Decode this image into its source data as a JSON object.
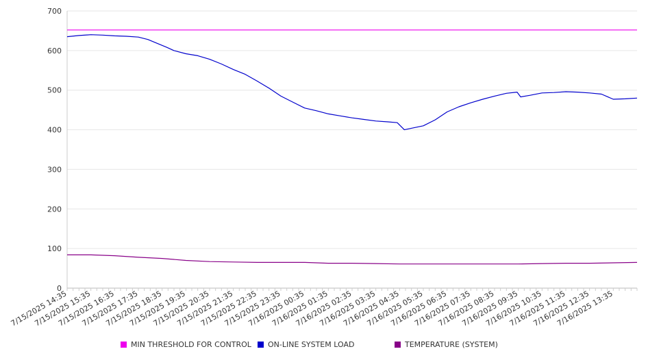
{
  "chart_data": {
    "type": "line",
    "ylim": [
      0,
      700
    ],
    "yticks": [
      0,
      100,
      200,
      300,
      400,
      500,
      600,
      700
    ],
    "x_labels": [
      "7/15/2025 14:35",
      "7/15/2025 15:35",
      "7/15/2025 16:35",
      "7/15/2025 17:35",
      "7/15/2025 18:35",
      "7/15/2025 19:35",
      "7/15/2025 20:35",
      "7/15/2025 21:35",
      "7/15/2025 22:35",
      "7/15/2025 23:35",
      "7/16/2025 00:35",
      "7/16/2025 01:35",
      "7/16/2025 02:35",
      "7/16/2025 03:35",
      "7/16/2025 04:35",
      "7/16/2025 05:35",
      "7/16/2025 06:35",
      "7/16/2025 07:35",
      "7/16/2025 08:35",
      "7/16/2025 09:35",
      "7/16/2025 10:35",
      "7/16/2025 11:35",
      "7/16/2025 12:35",
      "7/16/2025 13:35"
    ],
    "x_range_hours": [
      0,
      24
    ],
    "grid": true,
    "legend_position": "bottom",
    "series": [
      {
        "name": "MIN THRESHOLD FOR CONTROL",
        "color": "#ee00ee",
        "points": [
          [
            0,
            652
          ],
          [
            24,
            652
          ]
        ]
      },
      {
        "name": "ON-LINE SYSTEM LOAD",
        "color": "#0000cc",
        "points": [
          [
            0,
            635
          ],
          [
            0.5,
            638
          ],
          [
            1,
            640
          ],
          [
            1.5,
            639
          ],
          [
            2,
            637
          ],
          [
            2.5,
            636
          ],
          [
            3,
            634
          ],
          [
            3.4,
            628
          ],
          [
            3.8,
            618
          ],
          [
            4.2,
            608
          ],
          [
            4.5,
            600
          ],
          [
            5,
            592
          ],
          [
            5.5,
            587
          ],
          [
            6,
            578
          ],
          [
            6.5,
            566
          ],
          [
            7,
            552
          ],
          [
            7.5,
            540
          ],
          [
            8,
            523
          ],
          [
            8.5,
            505
          ],
          [
            9,
            485
          ],
          [
            9.5,
            470
          ],
          [
            10,
            455
          ],
          [
            10.5,
            448
          ],
          [
            11,
            440
          ],
          [
            11.5,
            435
          ],
          [
            12,
            430
          ],
          [
            12.5,
            426
          ],
          [
            13,
            422
          ],
          [
            13.5,
            420
          ],
          [
            13.9,
            418
          ],
          [
            14.2,
            400
          ],
          [
            14.6,
            405
          ],
          [
            15,
            410
          ],
          [
            15.5,
            425
          ],
          [
            16,
            445
          ],
          [
            16.5,
            458
          ],
          [
            17,
            468
          ],
          [
            17.5,
            477
          ],
          [
            18,
            485
          ],
          [
            18.5,
            492
          ],
          [
            18.95,
            495
          ],
          [
            19.1,
            483
          ],
          [
            19.5,
            487
          ],
          [
            20,
            493
          ],
          [
            20.5,
            494
          ],
          [
            21,
            496
          ],
          [
            21.5,
            495
          ],
          [
            22,
            493
          ],
          [
            22.5,
            490
          ],
          [
            23,
            477
          ],
          [
            23.5,
            478
          ],
          [
            24,
            480
          ]
        ]
      },
      {
        "name": "TEMPERATURE (SYSTEM)",
        "color": "#880088",
        "points": [
          [
            0,
            84
          ],
          [
            1,
            84
          ],
          [
            2,
            82
          ],
          [
            3,
            78
          ],
          [
            4,
            75
          ],
          [
            5,
            70
          ],
          [
            6,
            67
          ],
          [
            7,
            66
          ],
          [
            8,
            65
          ],
          [
            9,
            65
          ],
          [
            10,
            65
          ],
          [
            11,
            63
          ],
          [
            12,
            63
          ],
          [
            13,
            62
          ],
          [
            14,
            61
          ],
          [
            16,
            61
          ],
          [
            18,
            61
          ],
          [
            19,
            61
          ],
          [
            20,
            62
          ],
          [
            21,
            63
          ],
          [
            22,
            63
          ],
          [
            23,
            64
          ],
          [
            24,
            65
          ]
        ]
      }
    ]
  }
}
